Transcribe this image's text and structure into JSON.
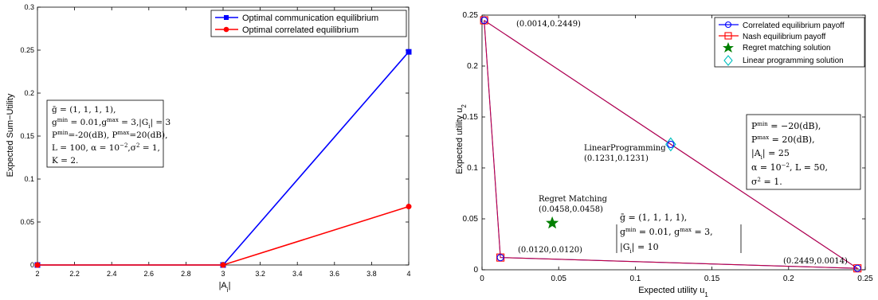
{
  "chart_data": [
    {
      "type": "line",
      "xlabel": "|A_i|",
      "ylabel": "Expected Sum−Utility",
      "xlim": [
        2,
        4
      ],
      "ylim": [
        0,
        0.3
      ],
      "xticks": [
        "2",
        "2.2",
        "2.4",
        "2.6",
        "2.8",
        "3",
        "3.2",
        "3.4",
        "3.6",
        "3.8",
        "4"
      ],
      "yticks": [
        "0",
        "0.05",
        "0.1",
        "0.15",
        "0.2",
        "0.25",
        "0.3"
      ],
      "x": [
        2,
        3,
        4
      ],
      "series": [
        {
          "name": "Optimal communication equilibrium",
          "values": [
            0,
            0,
            0.248
          ],
          "color": "#0000ff",
          "marker": "square"
        },
        {
          "name": "Optimal correlated equilibrium",
          "values": [
            0,
            0,
            0.068
          ],
          "color": "#ff0000",
          "marker": "circle"
        }
      ],
      "legend_position": "top-right",
      "annotation_lines": [
        "ḡ = (1, 1, 1, 1),",
        "g^min = 0.01, g^max = 3, |G_i| = 3",
        "P^min = −20(dB), P^max = 20(dB),",
        "L = 100, α = 10^−2, σ² = 1,",
        "K = 2."
      ]
    },
    {
      "type": "scatter",
      "xlabel": "Expected utility u_1",
      "ylabel": "Expected utility u_2",
      "xlim": [
        0,
        0.25
      ],
      "ylim": [
        0,
        0.25
      ],
      "xticks": [
        "0",
        "0.05",
        "0.1",
        "0.15",
        "0.2",
        "0.25"
      ],
      "yticks": [
        "0",
        "0.05",
        "0.1",
        "0.15",
        "0.2",
        "0.25"
      ],
      "polygon_vertices": [
        [
          0.0014,
          0.2449
        ],
        [
          0.012,
          0.012
        ],
        [
          0.2449,
          0.0014
        ]
      ],
      "series": [
        {
          "name": "Correlated equilibrium payoff",
          "color": "#0000ff",
          "marker": "circle"
        },
        {
          "name": "Nash equilibrium payoff",
          "color": "#ff0000",
          "marker": "square"
        },
        {
          "name": "Regret matching solution",
          "color": "#007f00",
          "marker": "star",
          "points": [
            [
              0.0458,
              0.0458
            ]
          ]
        },
        {
          "name": "Linear programming solution",
          "color": "#00bfbf",
          "marker": "diamond",
          "points": [
            [
              0.1231,
              0.1231
            ]
          ]
        }
      ],
      "legend_position": "top-right",
      "point_labels": {
        "v1": "(0.0014,0.2449)",
        "v2": "(0.0120,0.0120)",
        "v3": "(0.2449,0.0014)",
        "lp_name": "LinearProgramming",
        "lp_coord": "(0.1231,0.1231)",
        "rm_name": "Regret Matching",
        "rm_coord": "(0.0458,0.0458)"
      },
      "annotation_right": [
        "P^min = −20(dB),",
        "P^max = 20(dB),",
        "|A_i| = 25",
        "α = 10^−2, L = 50,",
        "σ² = 1."
      ],
      "annotation_bottom": [
        "ḡ = (1, 1, 1, 1),",
        "g^min = 0.01, g^max = 3,",
        "|G_i| = 10"
      ]
    }
  ]
}
